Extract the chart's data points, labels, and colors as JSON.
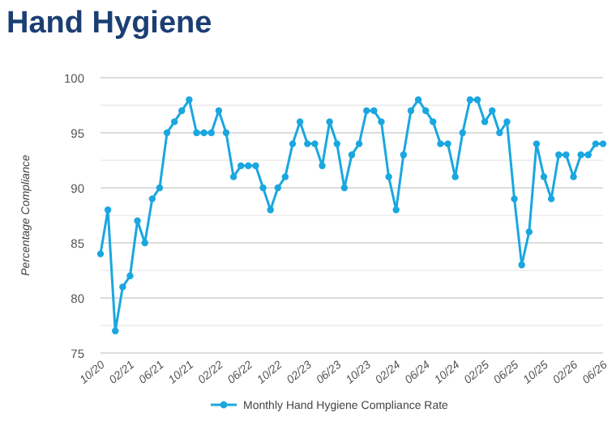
{
  "chart_data": {
    "type": "line",
    "title": "Hand Hygiene",
    "ylabel": "Percentage Compliance",
    "categories": [
      "10/20",
      null,
      null,
      null,
      "02/21",
      null,
      null,
      null,
      "06/21",
      null,
      null,
      null,
      "10/21",
      null,
      null,
      null,
      "02/22",
      null,
      null,
      null,
      "06/22",
      null,
      null,
      null,
      "10/22",
      null,
      null,
      null,
      "02/23",
      null,
      null,
      null,
      "06/23",
      null,
      null,
      null,
      "10/23",
      null,
      null,
      null,
      "02/24",
      null,
      null,
      null,
      "06/24",
      null,
      null,
      null,
      "10/24",
      null,
      null,
      null,
      "02/25",
      null,
      null,
      null,
      "06/25",
      null,
      null,
      null,
      "10/25",
      null,
      null,
      null,
      "02/26",
      null,
      null,
      null,
      "06/26"
    ],
    "series": [
      {
        "name": "Monthly Hand Hygiene Compliance Rate",
        "color": "#1aa7e0",
        "values": [
          84,
          88,
          77,
          81,
          82,
          87,
          85,
          89,
          90,
          95,
          96,
          97,
          98,
          95,
          95,
          95,
          97,
          95,
          91,
          92,
          92,
          92,
          90,
          88,
          90,
          91,
          94,
          96,
          94,
          94,
          92,
          96,
          94,
          90,
          93,
          94,
          97,
          97,
          96,
          91,
          88,
          93,
          97,
          98,
          97,
          96,
          94,
          94,
          91,
          95,
          98,
          98,
          96,
          97,
          95,
          96,
          89,
          83,
          86,
          94,
          91,
          89,
          93,
          93,
          91,
          93,
          93,
          94,
          94
        ]
      }
    ],
    "ylim": [
      75,
      100
    ],
    "yticks": [
      75,
      {
        "value": 77.5,
        "label": null
      },
      80,
      {
        "value": 82.5,
        "label": null
      },
      85,
      {
        "value": 87.5,
        "label": null
      },
      90,
      {
        "value": 92.5,
        "label": null
      },
      95,
      {
        "value": 97.5,
        "label": null
      },
      100
    ],
    "grid": "y",
    "legend": "bottom",
    "marker": "circle",
    "line_style": "solid"
  }
}
